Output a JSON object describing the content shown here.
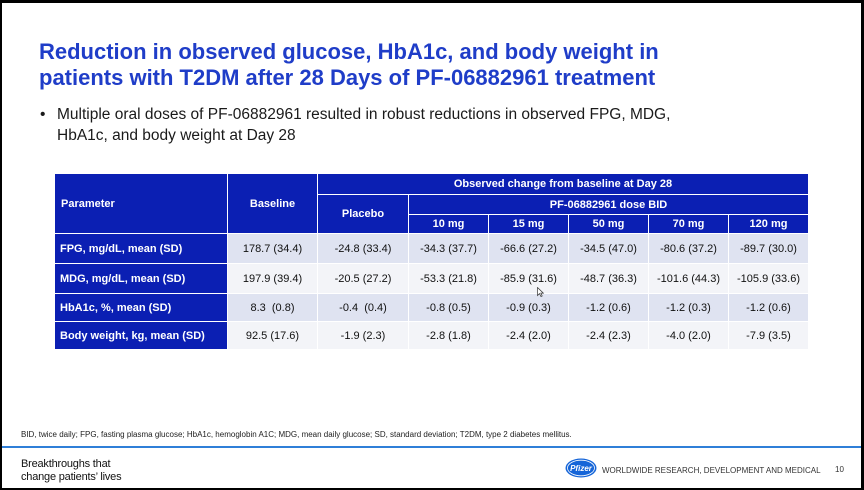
{
  "slide": {
    "title_line1": "Reduction in observed glucose, HbA1c, and body weight in",
    "title_line2": "patients with T2DM after 28 Days of PF-06882961 treatment",
    "bullet_line1": "Multiple oral doses of PF-06882961 resulted in robust reductions in observed FPG, MDG,",
    "bullet_line2": "HbA1c, and body weight at Day 28",
    "bullet_marker": "•"
  },
  "table": {
    "header_parameter": "Parameter",
    "header_baseline": "Baseline",
    "header_group": "Observed change from baseline at Day 28",
    "header_placebo": "Placebo",
    "header_dose_group": "PF-06882961 dose BID",
    "doses": [
      "10 mg",
      "15 mg",
      "50 mg",
      "70 mg",
      "120 mg"
    ],
    "rows": [
      {
        "label": "FPG, mg/dL, mean (SD)",
        "baseline": "178.7 (34.4)",
        "placebo": "-24.8 (33.4)",
        "values": [
          "-34.3 (37.7)",
          "-66.6 (27.2)",
          "-34.5 (47.0)",
          "-80.6 (37.2)",
          "-89.7 (30.0)"
        ]
      },
      {
        "label": "MDG, mg/dL, mean (SD)",
        "baseline": "197.9 (39.4)",
        "placebo": "-20.5 (27.2)",
        "values": [
          "-53.3 (21.8)",
          "-85.9 (31.6)",
          "-48.7 (36.3)",
          "-101.6 (44.3)",
          "-105.9 (33.6)"
        ]
      },
      {
        "label": "HbA1c, %, mean (SD)",
        "baseline": "8.3  (0.8)",
        "placebo": "-0.4  (0.4)",
        "values": [
          "-0.8 (0.5)",
          "-0.9 (0.3)",
          "-1.2 (0.6)",
          "-1.2 (0.3)",
          "-1.2 (0.6)"
        ]
      },
      {
        "label": "Body weight, kg, mean (SD)",
        "baseline": "92.5 (17.6)",
        "placebo": "-1.9 (2.3)",
        "values": [
          "-2.8 (1.8)",
          "-2.4 (2.0)",
          "-2.4 (2.3)",
          "-4.0 (2.0)",
          "-7.9 (3.5)"
        ]
      }
    ]
  },
  "footer": {
    "footnote": "BID, twice daily; FPG, fasting plasma glucose; HbA1c, hemoglobin A1C; MDG, mean daily glucose; SD, standard deviation; T2DM, type 2 diabetes mellitus.",
    "tagline_line1": "Breakthroughs that",
    "tagline_line2": "change patients’ lives",
    "logo_text": "Pfizer",
    "org": "WORLDWIDE RESEARCH, DEVELOPMENT AND MEDICAL",
    "page_number": "10",
    "accent_color": "#0b1fb3",
    "title_color": "#1f3dc8",
    "rule_color": "#2f7fd8"
  }
}
